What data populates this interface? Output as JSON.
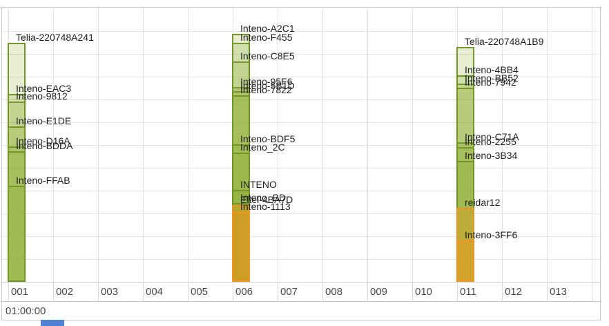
{
  "chart_data": {
    "type": "bar",
    "description": "Wi-Fi channel usage graph: translucent stacked bars per channel, one rectangle per detected network (height = relative signal)",
    "x_axis_labels": [
      "001",
      "002",
      "003",
      "004",
      "005",
      "006",
      "007",
      "008",
      "009",
      "010",
      "011",
      "012",
      "013"
    ],
    "time_label": "01:00:00",
    "ylim": [
      0,
      1
    ],
    "networks": [
      {
        "ssid": "Telia-220748A241",
        "channel": "001",
        "signal": 0.874,
        "color": "green"
      },
      {
        "ssid": "Inteno-EAC3",
        "channel": "001",
        "signal": 0.687,
        "color": "green"
      },
      {
        "ssid": "Inteno-9812",
        "channel": "001",
        "signal": 0.659,
        "color": "green"
      },
      {
        "ssid": "Inteno-E1DE",
        "channel": "001",
        "signal": 0.568,
        "color": "green"
      },
      {
        "ssid": "Inteno-D16A",
        "channel": "001",
        "signal": 0.495,
        "color": "green"
      },
      {
        "ssid": "Inteno-BDDA",
        "channel": "001",
        "signal": 0.477,
        "color": "green"
      },
      {
        "ssid": "Inteno-FFAB",
        "channel": "001",
        "signal": 0.351,
        "color": "green"
      },
      {
        "ssid": "Inteno-A2C1",
        "channel": "006",
        "signal": 0.907,
        "color": "green"
      },
      {
        "ssid": "Inteno-F455",
        "channel": "006",
        "signal": 0.874,
        "color": "green"
      },
      {
        "ssid": "Inteno-C8E5",
        "channel": "006",
        "signal": 0.806,
        "color": "green"
      },
      {
        "ssid": "Inteno-95F6",
        "channel": "006",
        "signal": 0.712,
        "color": "green"
      },
      {
        "ssid": "Inteno-5B1D",
        "channel": "006",
        "signal": 0.697,
        "color": "green"
      },
      {
        "ssid": "Inteno-7822",
        "channel": "006",
        "signal": 0.682,
        "color": "green"
      },
      {
        "ssid": "Inteno-BDF5",
        "channel": "006",
        "signal": 0.503,
        "color": "green"
      },
      {
        "ssid": "Inteno_2C",
        "channel": "006",
        "signal": 0.472,
        "color": "green"
      },
      {
        "ssid": "INTENO",
        "channel": "006",
        "signal": 0.336,
        "color": "green"
      },
      {
        "ssid": "Inteno_BD",
        "channel": "006",
        "signal": 0.288,
        "color": "green"
      },
      {
        "ssid": "Eltel-4BA7D",
        "channel": "006",
        "signal": 0.28,
        "color": "orange"
      },
      {
        "ssid": "Inteno-1113",
        "channel": "006",
        "signal": 0.255,
        "color": "orange"
      },
      {
        "ssid": "Telia-220748A1B9",
        "channel": "011",
        "signal": 0.859,
        "color": "green"
      },
      {
        "ssid": "Inteno-4BB4",
        "channel": "011",
        "signal": 0.755,
        "color": "green"
      },
      {
        "ssid": "Inteno-BB52",
        "channel": "011",
        "signal": 0.725,
        "color": "green"
      },
      {
        "ssid": "Inteno-7942",
        "channel": "011",
        "signal": 0.71,
        "color": "green"
      },
      {
        "ssid": "Inteno-C71A",
        "channel": "011",
        "signal": 0.51,
        "color": "green"
      },
      {
        "ssid": "Inteno-2255",
        "channel": "011",
        "signal": 0.492,
        "color": "green"
      },
      {
        "ssid": "Inteno-3B34",
        "channel": "011",
        "signal": 0.442,
        "color": "green"
      },
      {
        "ssid": "reidar12",
        "channel": "011",
        "signal": 0.27,
        "color": "orange"
      },
      {
        "ssid": "Inteno-3FF6",
        "channel": "011",
        "signal": 0.152,
        "color": "orange"
      }
    ]
  },
  "colors": {
    "green_fill": "#8bab2c",
    "green_border": "#719426",
    "orange_fill": "#f09414",
    "orange_border": "#f09424",
    "grid": "#e0e0e0",
    "widget_border": "#c6c6c6",
    "axis_text": "#4a4a4a",
    "label_text": "#1f1f1f",
    "marker_blue": "#4f81d6"
  }
}
